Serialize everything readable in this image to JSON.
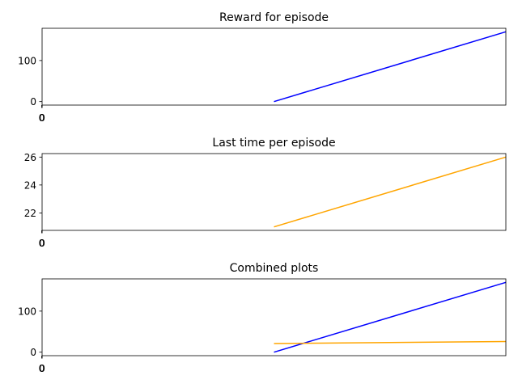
{
  "chart_data": [
    {
      "type": "line",
      "title": "Reward for episode",
      "xlabel": "",
      "ylabel": "",
      "xlim": [
        -0.5,
        0.5
      ],
      "ylim": [
        -8.5,
        178.5
      ],
      "x_ticks": [
        "0",
        "0"
      ],
      "y_ticks": [
        0,
        100
      ],
      "grid": false,
      "series": [
        {
          "color": "#0000ff",
          "x": [
            0,
            0.5
          ],
          "y": [
            0,
            170
          ]
        }
      ]
    },
    {
      "type": "line",
      "title": "Last time per episode",
      "xlabel": "",
      "ylabel": "",
      "xlim": [
        -0.5,
        0.5
      ],
      "ylim": [
        20.75,
        26.25
      ],
      "x_ticks": [
        "0",
        "0"
      ],
      "y_ticks": [
        22,
        24,
        26
      ],
      "grid": false,
      "series": [
        {
          "color": "#ffa500",
          "x": [
            0,
            0.5
          ],
          "y": [
            21,
            26
          ]
        }
      ]
    },
    {
      "type": "line",
      "title": "Combined plots",
      "xlabel": "",
      "ylabel": "",
      "xlim": [
        -0.5,
        0.5
      ],
      "ylim": [
        -8.5,
        178.5
      ],
      "x_ticks": [
        "0",
        "0"
      ],
      "y_ticks": [
        0,
        100
      ],
      "grid": false,
      "series": [
        {
          "color": "#0000ff",
          "x": [
            0,
            0.5
          ],
          "y": [
            0,
            170
          ]
        },
        {
          "color": "#ffa500",
          "x": [
            0,
            0.5
          ],
          "y": [
            21,
            26
          ]
        }
      ]
    }
  ]
}
